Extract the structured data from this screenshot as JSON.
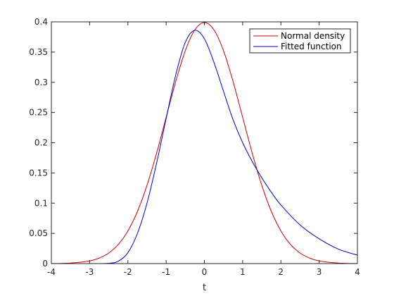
{
  "chart_data": {
    "type": "line",
    "title": "",
    "xlabel": "t",
    "ylabel": "",
    "xlim": [
      -4,
      4
    ],
    "ylim": [
      0,
      0.4
    ],
    "xticks": [
      -4,
      -3,
      -2,
      -1,
      0,
      1,
      2,
      3,
      4
    ],
    "xtick_labels": [
      "-4",
      "-3",
      "-2",
      "-1",
      "0",
      "1",
      "2",
      "3",
      "4"
    ],
    "yticks": [
      0,
      0.05,
      0.1,
      0.15,
      0.2,
      0.25,
      0.3,
      0.35,
      0.4
    ],
    "ytick_labels": [
      "0",
      "0.05",
      "0.1",
      "0.15",
      "0.2",
      "0.25",
      "0.3",
      "0.35",
      "0.4"
    ],
    "grid": false,
    "legend": {
      "position": "top-right",
      "box": true
    },
    "series": [
      {
        "name": "Normal density",
        "color": "#cc0000",
        "x": [
          -4,
          -3.5,
          -3,
          -2.75,
          -2.5,
          -2.25,
          -2,
          -1.75,
          -1.5,
          -1.25,
          -1,
          -0.75,
          -0.5,
          -0.25,
          0,
          0.25,
          0.5,
          0.75,
          1,
          1.25,
          1.5,
          1.75,
          2,
          2.25,
          2.5,
          2.75,
          3,
          3.5,
          4
        ],
        "y": [
          0.0001,
          0.0009,
          0.0044,
          0.0091,
          0.0175,
          0.0317,
          0.054,
          0.0863,
          0.1295,
          0.1826,
          0.242,
          0.3011,
          0.3521,
          0.3867,
          0.3989,
          0.3867,
          0.3521,
          0.3011,
          0.242,
          0.1826,
          0.1295,
          0.0863,
          0.054,
          0.0317,
          0.0175,
          0.0091,
          0.0044,
          0.0009,
          0.0001
        ]
      },
      {
        "name": "Fitted function",
        "color": "#0000cc",
        "x": [
          -4,
          -3,
          -2.5,
          -2.25,
          -2,
          -1.75,
          -1.5,
          -1.25,
          -1,
          -0.75,
          -0.5,
          -0.25,
          0,
          0.25,
          0.5,
          0.75,
          1,
          1.25,
          1.5,
          1.75,
          2,
          2.5,
          3,
          3.5,
          4
        ],
        "y": [
          0,
          0,
          0.0005,
          0.004,
          0.018,
          0.05,
          0.1,
          0.166,
          0.24,
          0.312,
          0.366,
          0.386,
          0.372,
          0.333,
          0.285,
          0.238,
          0.2,
          0.169,
          0.142,
          0.118,
          0.097,
          0.064,
          0.041,
          0.024,
          0.014
        ]
      }
    ]
  }
}
